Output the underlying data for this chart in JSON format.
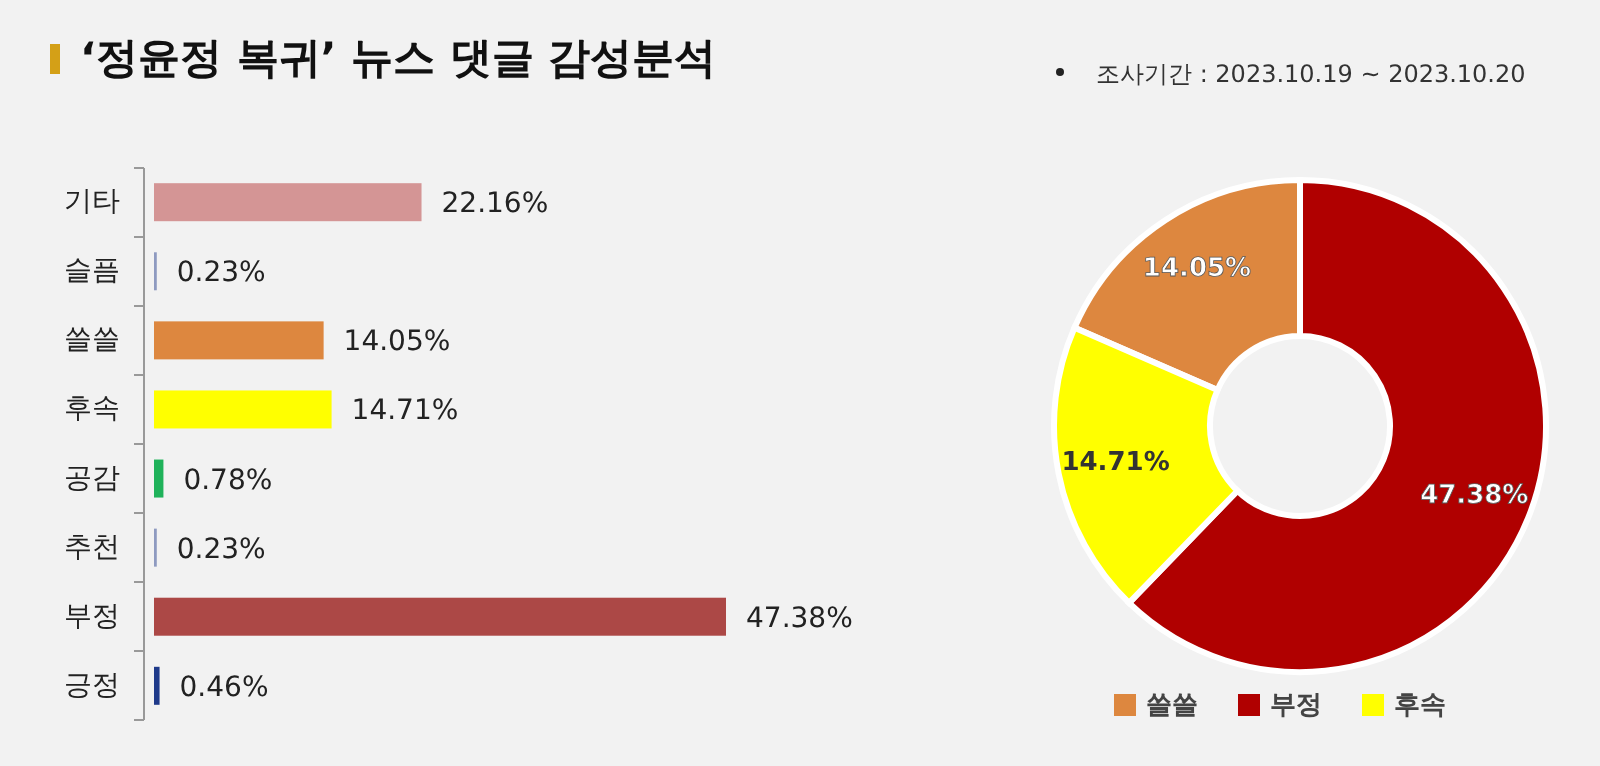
{
  "chart_data": [
    {
      "type": "bar",
      "orientation": "horizontal",
      "title": "‘정윤정 복귀’ 뉴스 댓글 감성분석",
      "categories": [
        "기타",
        "슬픔",
        "쓸쓸",
        "후속",
        "공감",
        "추천",
        "부정",
        "긍정"
      ],
      "values": [
        22.16,
        0.23,
        14.05,
        14.71,
        0.78,
        0.23,
        47.38,
        0.46
      ],
      "colors": [
        "#d49595",
        "#8e9ac0",
        "#dd873f",
        "#ffff00",
        "#1fb25a",
        "#8e9ac0",
        "#ac4846",
        "#1f3a8a"
      ],
      "value_labels": [
        "22.16%",
        "0.23%",
        "14.05%",
        "14.71%",
        "0.78%",
        "0.23%",
        "47.38%",
        "0.46%"
      ]
    },
    {
      "type": "donut",
      "subtitle": "조사기간 : 2023.10.19 ~ 2023.10.20",
      "categories": [
        "쓸쓸",
        "부정",
        "후속"
      ],
      "values": [
        14.05,
        47.38,
        14.71
      ],
      "colors": [
        "#dd873f",
        "#b00000",
        "#ffff00"
      ],
      "value_labels": [
        "14.05%",
        "47.38%",
        "14.71%"
      ],
      "legend": "bottom"
    }
  ]
}
